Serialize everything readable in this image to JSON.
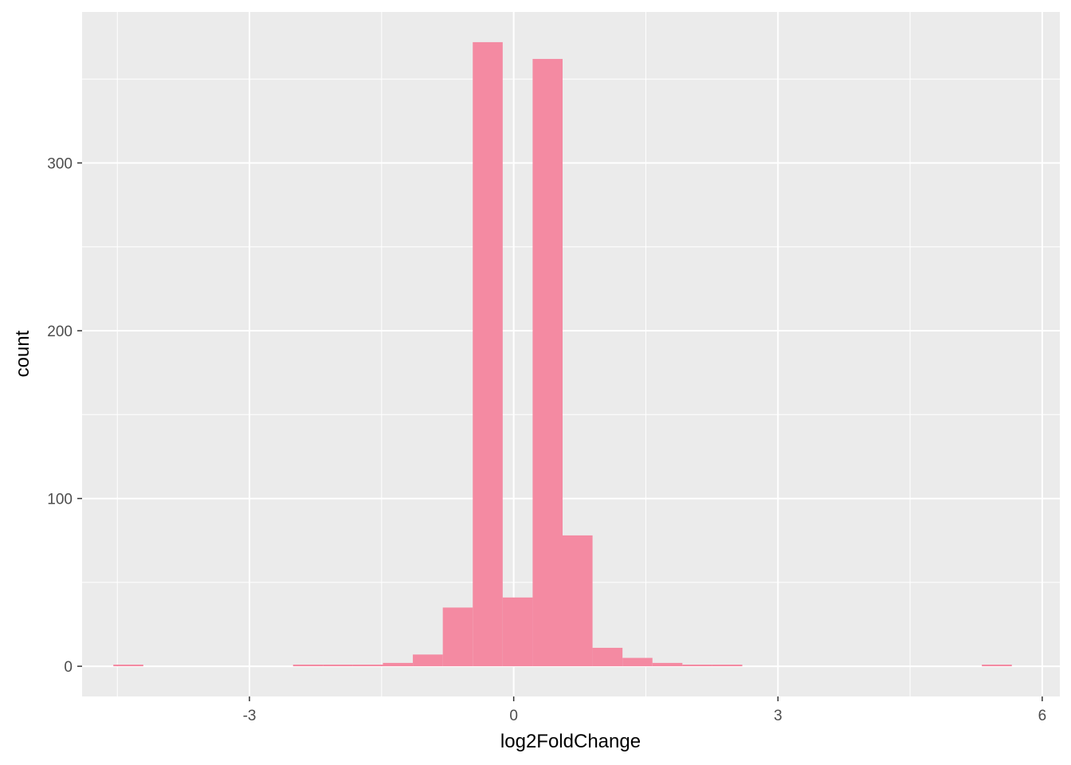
{
  "chart_data": {
    "type": "bar",
    "subtype": "histogram",
    "title": "",
    "xlabel": "log2FoldChange",
    "ylabel": "count",
    "xlim": [
      -4.9,
      6.2
    ],
    "ylim": [
      -18,
      390
    ],
    "x_ticks": [
      -3,
      0,
      3,
      6
    ],
    "y_ticks": [
      0,
      100,
      200,
      300
    ],
    "x_tick_labels": [
      "-3",
      "0",
      "3",
      "6"
    ],
    "y_tick_labels": [
      "0",
      "100",
      "200",
      "300"
    ],
    "grid": true,
    "legend": "none",
    "colors": {
      "panel_background": "#ebebeb",
      "grid": "#ffffff",
      "bar_fill": "#f48aa2"
    },
    "bins": [
      {
        "x0": -4.545,
        "x1": -4.205,
        "count": 1
      },
      {
        "x0": -2.505,
        "x1": -2.165,
        "count": 1
      },
      {
        "x0": -2.165,
        "x1": -1.825,
        "count": 1
      },
      {
        "x0": -1.825,
        "x1": -1.485,
        "count": 1
      },
      {
        "x0": -1.485,
        "x1": -1.145,
        "count": 2
      },
      {
        "x0": -1.145,
        "x1": -0.805,
        "count": 7
      },
      {
        "x0": -0.805,
        "x1": -0.465,
        "count": 35
      },
      {
        "x0": -0.465,
        "x1": -0.125,
        "count": 372
      },
      {
        "x0": -0.125,
        "x1": 0.215,
        "count": 41
      },
      {
        "x0": 0.215,
        "x1": 0.555,
        "count": 362
      },
      {
        "x0": 0.555,
        "x1": 0.895,
        "count": 78
      },
      {
        "x0": 0.895,
        "x1": 1.235,
        "count": 11
      },
      {
        "x0": 1.235,
        "x1": 1.575,
        "count": 5
      },
      {
        "x0": 1.575,
        "x1": 1.915,
        "count": 2
      },
      {
        "x0": 1.915,
        "x1": 2.255,
        "count": 1
      },
      {
        "x0": 2.255,
        "x1": 2.595,
        "count": 1
      },
      {
        "x0": 5.315,
        "x1": 5.655,
        "count": 1
      }
    ]
  }
}
